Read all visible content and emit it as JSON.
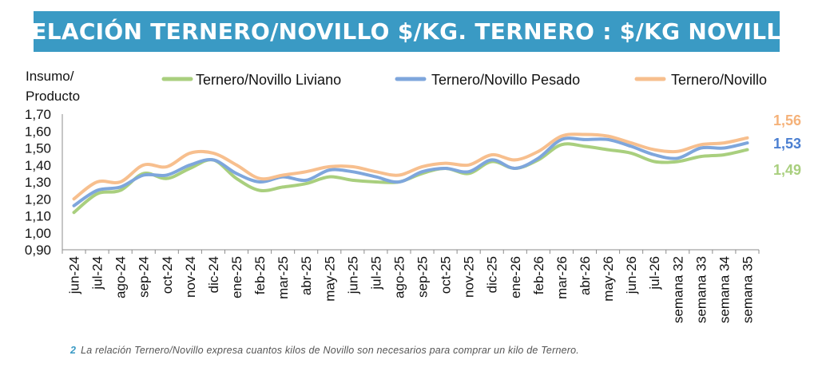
{
  "header": {
    "title": "RELACIÓN TERNERO/NOVILLO $/KG. TERNERO : $/KG NOVILLO"
  },
  "footnote": {
    "number": "2",
    "text": "La relación Ternero/Novillo expresa cuantos kilos de Novillo son necesarios para comprar un kilo de Ternero."
  },
  "chart_data": {
    "type": "line",
    "title": "RELACIÓN TERNERO/NOVILLO $/KG. TERNERO : $/KG NOVILLO",
    "ylabel": "Insumo/ Producto",
    "ylabel_lines": [
      "Insumo/",
      "Producto"
    ],
    "xlabel": "",
    "ylim": [
      0.9,
      1.7
    ],
    "yticks": [
      "1,70",
      "1,60",
      "1,50",
      "1,40",
      "1,30",
      "1,20",
      "1,10",
      "1,00",
      "0,90"
    ],
    "ytick_values": [
      1.7,
      1.6,
      1.5,
      1.4,
      1.3,
      1.2,
      1.1,
      1.0,
      0.9
    ],
    "grid": false,
    "legend_position": "top",
    "categories": [
      "jun-24",
      "jul-24",
      "ago-24",
      "sep-24",
      "oct-24",
      "nov-24",
      "dic-24",
      "ene-25",
      "feb-25",
      "mar-25",
      "abr-25",
      "may-25",
      "jun-25",
      "jul-25",
      "ago-25",
      "sep-25",
      "oct-25",
      "nov-25",
      "dic-25",
      "ene-26",
      "feb-26",
      "mar-26",
      "abr-26",
      "may-26",
      "jun-26",
      "jul-26",
      "semana 32",
      "semana 33",
      "semana 34",
      "semana 35"
    ],
    "series": [
      {
        "name": "Ternero/Novillo Liviano",
        "color": "#a9cf7e",
        "end_label": "1,49",
        "label_color": "#a9cf7e",
        "values": [
          1.12,
          1.23,
          1.25,
          1.35,
          1.32,
          1.38,
          1.43,
          1.32,
          1.25,
          1.27,
          1.29,
          1.33,
          1.31,
          1.3,
          1.3,
          1.35,
          1.38,
          1.35,
          1.42,
          1.38,
          1.43,
          1.52,
          1.51,
          1.49,
          1.47,
          1.42,
          1.42,
          1.45,
          1.46,
          1.49
        ]
      },
      {
        "name": "Ternero/Novillo Pesado",
        "color": "#7ea6dc",
        "end_label": "1,53",
        "label_color": "#4b7fd1",
        "values": [
          1.16,
          1.25,
          1.27,
          1.34,
          1.34,
          1.4,
          1.43,
          1.35,
          1.3,
          1.33,
          1.31,
          1.37,
          1.36,
          1.33,
          1.3,
          1.36,
          1.38,
          1.36,
          1.43,
          1.38,
          1.44,
          1.55,
          1.55,
          1.55,
          1.51,
          1.46,
          1.44,
          1.5,
          1.5,
          1.53
        ]
      },
      {
        "name": "Ternero/Novillo",
        "color": "#f7bf8e",
        "end_label": "1,56",
        "label_color": "#f5b27a",
        "values": [
          1.2,
          1.3,
          1.3,
          1.4,
          1.39,
          1.47,
          1.47,
          1.4,
          1.32,
          1.34,
          1.36,
          1.39,
          1.39,
          1.36,
          1.34,
          1.39,
          1.41,
          1.4,
          1.46,
          1.43,
          1.48,
          1.57,
          1.58,
          1.57,
          1.53,
          1.49,
          1.48,
          1.52,
          1.53,
          1.56
        ]
      }
    ]
  }
}
